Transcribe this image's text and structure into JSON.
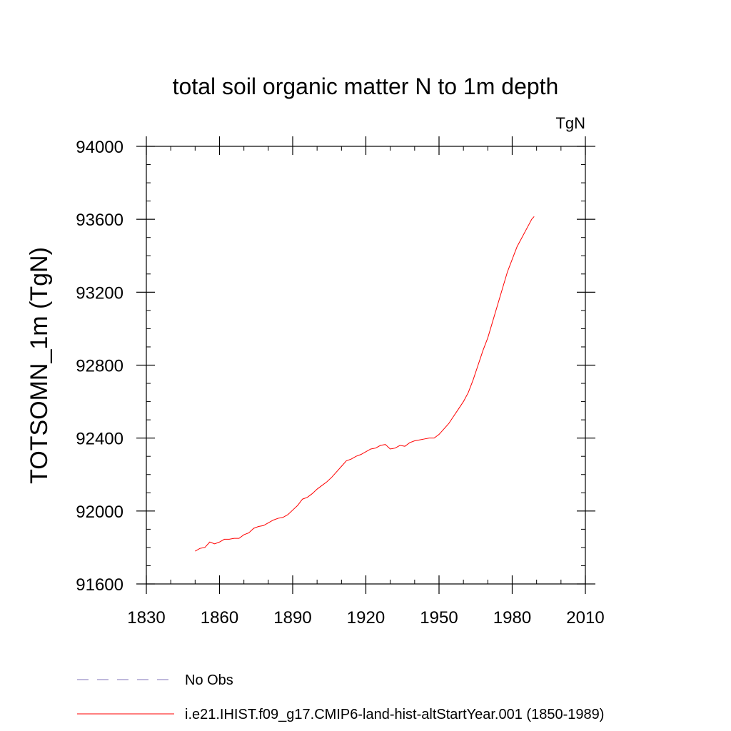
{
  "chart_data": {
    "type": "line",
    "title": "total soil organic matter N to 1m depth",
    "units": "TgN",
    "ylabel": "TOTSOMN_1m  (TgN)",
    "xlabel": "",
    "xlim": [
      1830,
      2010
    ],
    "ylim": [
      91600,
      94000
    ],
    "x_ticks": [
      1830,
      1860,
      1890,
      1920,
      1950,
      1980,
      2010
    ],
    "y_ticks": [
      91600,
      92000,
      92400,
      92800,
      93200,
      93600,
      94000
    ],
    "x_minor_step": 10,
    "y_minor_step": 100,
    "legend_position": "bottom",
    "series": [
      {
        "name": "No Obs",
        "color": "#7f73b8",
        "style": "dashed",
        "x": [],
        "y": []
      },
      {
        "name": "i.e21.IHIST.f09_g17.CMIP6-land-hist-altStartYear.001 (1850-1989)",
        "color": "#ff0000",
        "style": "solid",
        "x": [
          1850,
          1852,
          1854,
          1856,
          1858,
          1860,
          1862,
          1864,
          1866,
          1868,
          1870,
          1872,
          1874,
          1876,
          1878,
          1880,
          1882,
          1884,
          1886,
          1888,
          1890,
          1892,
          1894,
          1896,
          1898,
          1900,
          1902,
          1904,
          1906,
          1908,
          1910,
          1912,
          1914,
          1916,
          1918,
          1920,
          1922,
          1924,
          1926,
          1928,
          1930,
          1932,
          1934,
          1936,
          1938,
          1940,
          1942,
          1944,
          1946,
          1948,
          1950,
          1952,
          1954,
          1956,
          1958,
          1960,
          1962,
          1964,
          1966,
          1968,
          1970,
          1972,
          1974,
          1976,
          1978,
          1980,
          1982,
          1984,
          1986,
          1988,
          1989
        ],
        "y": [
          91780,
          91795,
          91800,
          91830,
          91820,
          91830,
          91845,
          91845,
          91850,
          91850,
          91870,
          91880,
          91905,
          91915,
          91920,
          91935,
          91950,
          91960,
          91965,
          91980,
          92005,
          92030,
          92065,
          92075,
          92095,
          92120,
          92140,
          92160,
          92185,
          92215,
          92245,
          92275,
          92285,
          92300,
          92310,
          92325,
          92340,
          92345,
          92360,
          92365,
          92340,
          92345,
          92360,
          92355,
          92375,
          92385,
          92390,
          92395,
          92400,
          92400,
          92420,
          92450,
          92480,
          92520,
          92560,
          92600,
          92650,
          92720,
          92800,
          92880,
          92950,
          93040,
          93130,
          93220,
          93310,
          93380,
          93450,
          93500,
          93550,
          93600,
          93615
        ]
      }
    ]
  }
}
